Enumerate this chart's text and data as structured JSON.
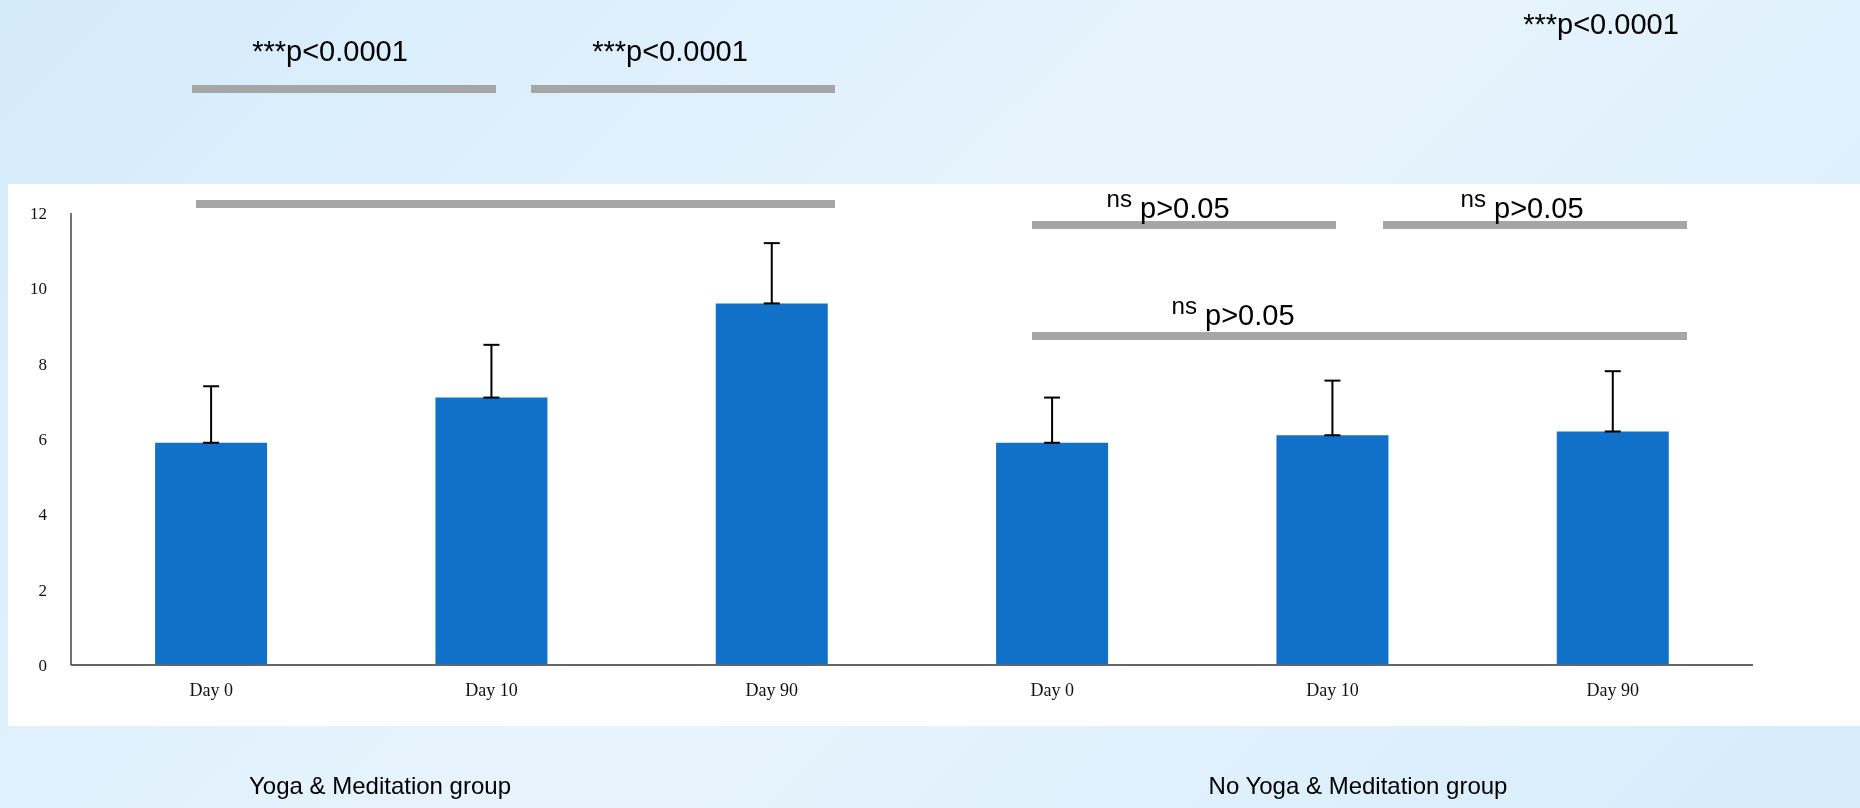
{
  "chart_data": {
    "type": "bar",
    "categories": [
      "Day 0",
      "Day 10",
      "Day 90",
      "Day 0",
      "Day 10",
      "Day 90"
    ],
    "values": [
      5.9,
      7.1,
      9.6,
      5.9,
      6.1,
      6.2
    ],
    "errors": [
      1.5,
      1.4,
      1.6,
      1.2,
      1.45,
      1.6
    ],
    "color": "#1170c8",
    "ylim": [
      0,
      12
    ],
    "yticks": [
      0,
      2,
      4,
      6,
      8,
      10,
      12
    ],
    "grid": false,
    "annotations": [
      "***p<0.0001",
      "***p<0.0001",
      "***p<0.0001",
      "$^{ns}$ p>0.05",
      "$^{ns}$ p>0.05",
      "$^{ns}$ p>0.05",
      "Yoga & Meditation group",
      "No Yoga & Meditation group"
    ]
  }
}
